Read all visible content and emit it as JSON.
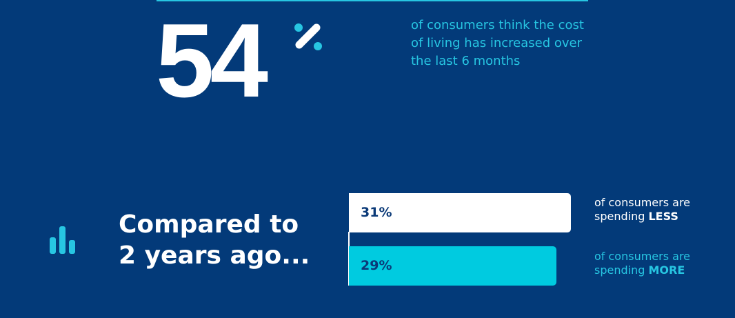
{
  "headline": {
    "value": 54,
    "description": "of consumers think the cost of living has increased over the last 6 months"
  },
  "comparison": {
    "title": "Compared to 2 years ago...",
    "bars": [
      {
        "value": 31,
        "label": "31%",
        "text": "of consumers are spending",
        "emphasis": "LESS",
        "color": "#ffffff",
        "label_color": "#0b3a78",
        "text_color": "#ffffff"
      },
      {
        "value": 29,
        "label": "29%",
        "text": "of consumers are spending",
        "emphasis": "MORE",
        "color": "#00cbe0",
        "label_color": "#0b3a78",
        "text_color": "#27c6e2"
      }
    ]
  }
}
